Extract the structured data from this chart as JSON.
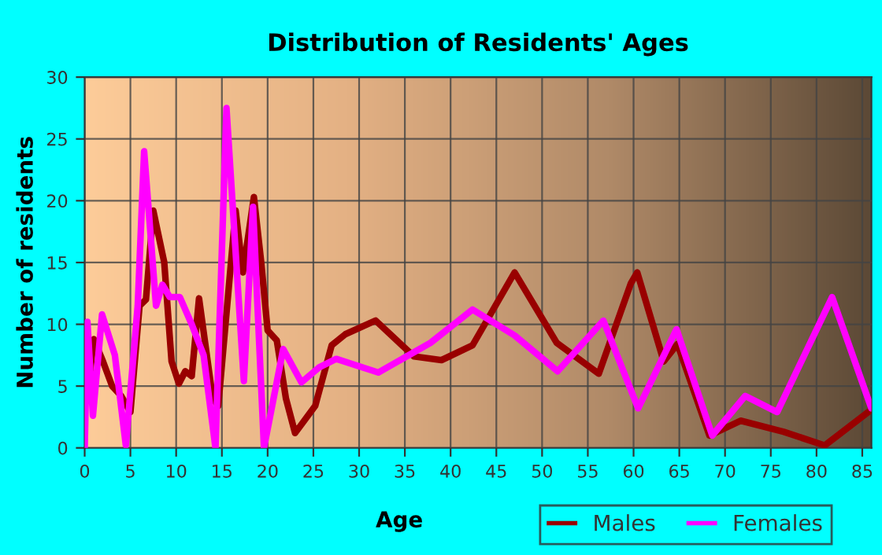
{
  "chart_data": {
    "type": "line",
    "title": "Distribution of Residents' Ages",
    "xlabel": "Age",
    "ylabel": "Number of residents",
    "xlim": [
      0,
      86
    ],
    "ylim": [
      0,
      30
    ],
    "xticks": [
      0,
      5,
      10,
      15,
      20,
      25,
      30,
      35,
      40,
      45,
      50,
      55,
      60,
      65,
      70,
      75,
      80,
      85
    ],
    "yticks": [
      0,
      5,
      10,
      15,
      20,
      25,
      30
    ],
    "grid": true,
    "legend": "bottom right",
    "line_style": "solid",
    "marker": "none",
    "series": [
      {
        "name": "Males",
        "color": "#990000",
        "x": [
          0,
          0.5,
          1,
          2,
          3,
          4,
          5,
          6,
          6.7,
          7.5,
          8.7,
          9.5,
          10.3,
          11,
          11.7,
          12.5,
          14,
          14.6,
          16.5,
          17.3,
          18.5,
          19.3,
          20,
          21,
          22,
          23,
          25.2,
          27,
          28.5,
          31.8,
          36,
          39,
          42.4,
          47,
          51.6,
          56.2,
          59.7,
          60.4,
          63.3,
          64.8,
          68.3,
          71.7,
          76.4,
          80.9,
          86
        ],
        "values": [
          9.2,
          5.5,
          8.8,
          7,
          5,
          4.2,
          2.9,
          11.5,
          12,
          19.2,
          15,
          7,
          5.2,
          6.2,
          5.8,
          12.1,
          4,
          3.4,
          19.2,
          14.2,
          20.3,
          15,
          9.5,
          8.7,
          4,
          1.2,
          3.4,
          8.3,
          9.2,
          10.3,
          7.4,
          7.1,
          8.3,
          14.2,
          8.5,
          6,
          13.3,
          14.2,
          7,
          8.4,
          1,
          2.2,
          1.3,
          0.2,
          3.1
        ]
      },
      {
        "name": "Females",
        "color": "#ff00ff",
        "x": [
          0,
          0.3,
          0.9,
          1.9,
          3.3,
          4.5,
          5.8,
          6.5,
          7.8,
          8.5,
          9.3,
          10.4,
          11.7,
          13,
          14.3,
          15.5,
          17.4,
          18.4,
          19.6,
          21.7,
          23.7,
          25.6,
          27.5,
          32.1,
          37.8,
          42.4,
          47,
          51.7,
          56.7,
          60.5,
          64.7,
          68.6,
          72.2,
          75.7,
          81.7,
          86
        ],
        "values": [
          0,
          10.2,
          2.6,
          10.8,
          7.5,
          0.2,
          11.5,
          24,
          11.5,
          13.2,
          12.2,
          12.2,
          10,
          7.5,
          0,
          27.5,
          5.4,
          19.5,
          0,
          8,
          5.3,
          6.5,
          7.2,
          6.1,
          8.5,
          11.2,
          9.1,
          6.2,
          10.3,
          3.2,
          9.6,
          1,
          4.2,
          2.9,
          12.2,
          3.2
        ]
      }
    ]
  }
}
